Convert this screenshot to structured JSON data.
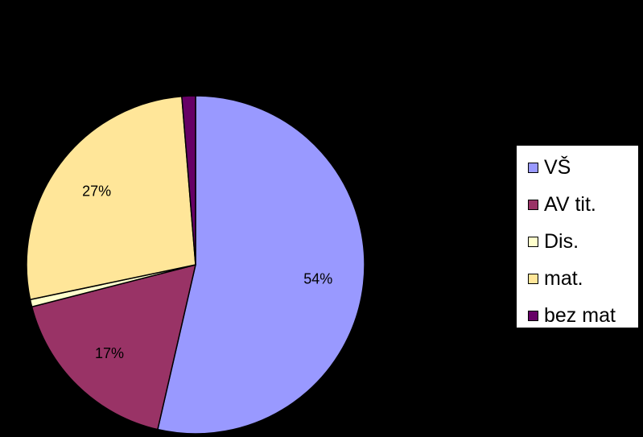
{
  "chart_data": {
    "type": "pie",
    "title": "",
    "start_angle_deg": 0,
    "direction": "clockwise",
    "legend_position": "right",
    "series": [
      {
        "name": "VŠ",
        "value": 53.6,
        "label": "54%",
        "color": "#9999ff"
      },
      {
        "name": "AV tit.",
        "value": 17.4,
        "label": "17%",
        "color": "#993366"
      },
      {
        "name": "Dis.",
        "value": 0.7,
        "label": "",
        "color": "#ffffcc"
      },
      {
        "name": "mat.",
        "value": 27.0,
        "label": "27%",
        "color": "#ffe699"
      },
      {
        "name": "bez mat",
        "value": 1.3,
        "label": "",
        "color": "#660066"
      }
    ]
  }
}
